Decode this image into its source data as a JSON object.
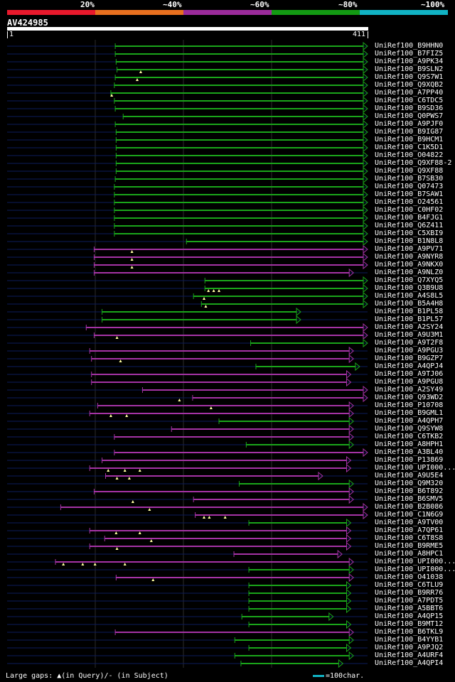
{
  "legend": [
    {
      "label": "20%",
      "color": "#e8192c"
    },
    {
      "label": "~40%",
      "color": "#e8701f"
    },
    {
      "label": "~60%",
      "color": "#9b2b9b"
    },
    {
      "label": "~80%",
      "color": "#139a13"
    },
    {
      "label": "~100%",
      "color": "#11b3c4"
    }
  ],
  "query": {
    "id": "AV424985",
    "start_label": "1",
    "end_label": "411",
    "length": 411
  },
  "colors": {
    "green": "#1aa51a",
    "purple": "#a533a5",
    "navy": "#0c1b5c",
    "grid": "#2b2b2b"
  },
  "hits": [
    {
      "name": "UniRef100_B9HHN0",
      "start": 124,
      "end": 411,
      "color": "green",
      "gaps": []
    },
    {
      "name": "UniRef100_B7FIZ5",
      "start": 124,
      "end": 411,
      "color": "green",
      "gaps": []
    },
    {
      "name": "UniRef100_A9PK34",
      "start": 125,
      "end": 411,
      "color": "green",
      "gaps": []
    },
    {
      "name": "UniRef100_B9SLN2",
      "start": 126,
      "end": 411,
      "color": "green",
      "gaps": [
        153
      ]
    },
    {
      "name": "UniRef100_Q9S7W1",
      "start": 124,
      "end": 411,
      "color": "green",
      "gaps": [
        149
      ]
    },
    {
      "name": "UniRef100_Q9XQB2",
      "start": 123,
      "end": 411,
      "color": "green",
      "gaps": []
    },
    {
      "name": "UniRef100_A7PP40",
      "start": 119,
      "end": 411,
      "color": "green",
      "gaps": [
        120
      ]
    },
    {
      "name": "UniRef100_C6TDC5",
      "start": 123,
      "end": 411,
      "color": "green",
      "gaps": []
    },
    {
      "name": "UniRef100_B9SD36",
      "start": 124,
      "end": 411,
      "color": "green",
      "gaps": []
    },
    {
      "name": "UniRef100_Q0PWS7",
      "start": 133,
      "end": 411,
      "color": "green",
      "gaps": []
    },
    {
      "name": "UniRef100_A9PJF0",
      "start": 124,
      "end": 411,
      "color": "green",
      "gaps": []
    },
    {
      "name": "UniRef100_B9IG87",
      "start": 125,
      "end": 411,
      "color": "green",
      "gaps": []
    },
    {
      "name": "UniRef100_B9HCM1",
      "start": 125,
      "end": 411,
      "color": "green",
      "gaps": []
    },
    {
      "name": "UniRef100_C1K5D1",
      "start": 125,
      "end": 411,
      "color": "green",
      "gaps": []
    },
    {
      "name": "UniRef100_O04822",
      "start": 125,
      "end": 411,
      "color": "green",
      "gaps": []
    },
    {
      "name": "UniRef100_Q9XF88-2",
      "start": 125,
      "end": 411,
      "color": "green",
      "gaps": []
    },
    {
      "name": "UniRef100_Q9XF88",
      "start": 125,
      "end": 411,
      "color": "green",
      "gaps": []
    },
    {
      "name": "UniRef100_B7SB30",
      "start": 124,
      "end": 411,
      "color": "green",
      "gaps": []
    },
    {
      "name": "UniRef100_Q07473",
      "start": 123,
      "end": 411,
      "color": "green",
      "gaps": []
    },
    {
      "name": "UniRef100_B7SAW1",
      "start": 123,
      "end": 411,
      "color": "green",
      "gaps": []
    },
    {
      "name": "UniRef100_O24561",
      "start": 123,
      "end": 411,
      "color": "green",
      "gaps": []
    },
    {
      "name": "UniRef100_C0HF02",
      "start": 123,
      "end": 411,
      "color": "green",
      "gaps": []
    },
    {
      "name": "UniRef100_B4FJG1",
      "start": 123,
      "end": 411,
      "color": "green",
      "gaps": []
    },
    {
      "name": "UniRef100_Q6Z411",
      "start": 123,
      "end": 411,
      "color": "green",
      "gaps": []
    },
    {
      "name": "UniRef100_C5XBI9",
      "start": 123,
      "end": 411,
      "color": "green",
      "gaps": []
    },
    {
      "name": "UniRef100_B1N8L8",
      "start": 205,
      "end": 411,
      "color": "green",
      "gaps": []
    },
    {
      "name": "UniRef100_A9PV71",
      "start": 100,
      "end": 411,
      "color": "purple",
      "gaps": [
        143
      ]
    },
    {
      "name": "UniRef100_A9NYR8",
      "start": 100,
      "end": 411,
      "color": "purple",
      "gaps": [
        143
      ]
    },
    {
      "name": "UniRef100_A9NKX0",
      "start": 100,
      "end": 411,
      "color": "purple",
      "gaps": [
        143
      ]
    },
    {
      "name": "UniRef100_A9NLZ0",
      "start": 100,
      "end": 395,
      "color": "purple",
      "gaps": []
    },
    {
      "name": "UniRef100_Q7XYQ5",
      "start": 226,
      "end": 411,
      "color": "green",
      "gaps": []
    },
    {
      "name": "UniRef100_Q3B9U8",
      "start": 226,
      "end": 411,
      "color": "green",
      "gaps": [
        230,
        236,
        242
      ]
    },
    {
      "name": "UniRef100_A4S8L5",
      "start": 213,
      "end": 411,
      "color": "green",
      "gaps": [
        225
      ]
    },
    {
      "name": "UniRef100_B5A4H8",
      "start": 222,
      "end": 411,
      "color": "green",
      "gaps": [
        227
      ]
    },
    {
      "name": "UniRef100_B1PL58",
      "start": 109,
      "end": 335,
      "color": "green",
      "gaps": []
    },
    {
      "name": "UniRef100_B1PL57",
      "start": 109,
      "end": 335,
      "color": "green",
      "gaps": []
    },
    {
      "name": "UniRef100_A2SY24",
      "start": 91,
      "end": 411,
      "color": "purple",
      "gaps": []
    },
    {
      "name": "UniRef100_A9U3M1",
      "start": 100,
      "end": 411,
      "color": "purple",
      "gaps": [
        126
      ]
    },
    {
      "name": "UniRef100_A9T2F8",
      "start": 278,
      "end": 411,
      "color": "green",
      "gaps": []
    },
    {
      "name": "UniRef100_A9PGU3",
      "start": 95,
      "end": 395,
      "color": "purple",
      "gaps": []
    },
    {
      "name": "UniRef100_B9GZP7",
      "start": 97,
      "end": 395,
      "color": "purple",
      "gaps": [
        130
      ]
    },
    {
      "name": "UniRef100_A4QPJ4",
      "start": 284,
      "end": 402,
      "color": "green",
      "gaps": []
    },
    {
      "name": "UniRef100_A9TJ06",
      "start": 97,
      "end": 392,
      "color": "purple",
      "gaps": []
    },
    {
      "name": "UniRef100_A9PGU8",
      "start": 97,
      "end": 392,
      "color": "purple",
      "gaps": []
    },
    {
      "name": "UniRef100_A2SY49",
      "start": 155,
      "end": 411,
      "color": "purple",
      "gaps": []
    },
    {
      "name": "UniRef100_Q93WD2",
      "start": 212,
      "end": 411,
      "color": "purple",
      "gaps": [
        197
      ]
    },
    {
      "name": "UniRef100_P10708",
      "start": 104,
      "end": 395,
      "color": "purple",
      "gaps": [
        233
      ]
    },
    {
      "name": "UniRef100_B9GML1",
      "start": 95,
      "end": 395,
      "color": "purple",
      "gaps": [
        119,
        137
      ]
    },
    {
      "name": "UniRef100_A4QPH7",
      "start": 242,
      "end": 395,
      "color": "green",
      "gaps": []
    },
    {
      "name": "UniRef100_Q9SYW8",
      "start": 188,
      "end": 395,
      "color": "purple",
      "gaps": []
    },
    {
      "name": "UniRef100_C6TKB2",
      "start": 123,
      "end": 395,
      "color": "purple",
      "gaps": []
    },
    {
      "name": "UniRef100_A8HPH1",
      "start": 273,
      "end": 395,
      "color": "green",
      "gaps": []
    },
    {
      "name": "UniRef100_A3BL40",
      "start": 123,
      "end": 411,
      "color": "purple",
      "gaps": []
    },
    {
      "name": "UniRef100_P13869",
      "start": 109,
      "end": 392,
      "color": "purple",
      "gaps": []
    },
    {
      "name": "UniRef100_UPI000...",
      "start": 95,
      "end": 392,
      "color": "purple",
      "gaps": [
        116,
        135,
        152
      ]
    },
    {
      "name": "UniRef100_A9U5E4",
      "start": 113,
      "end": 360,
      "color": "purple",
      "gaps": [
        126,
        140
      ]
    },
    {
      "name": "UniRef100_Q9M320",
      "start": 265,
      "end": 395,
      "color": "green",
      "gaps": []
    },
    {
      "name": "UniRef100_B6T892",
      "start": 100,
      "end": 395,
      "color": "purple",
      "gaps": []
    },
    {
      "name": "UniRef100_B6SMV5",
      "start": 213,
      "end": 395,
      "color": "purple",
      "gaps": [
        144
      ]
    },
    {
      "name": "UniRef100_B2B086",
      "start": 62,
      "end": 411,
      "color": "purple",
      "gaps": [
        163
      ]
    },
    {
      "name": "UniRef100_C1N6G9",
      "start": 215,
      "end": 411,
      "color": "purple",
      "gaps": [
        225,
        231,
        249
      ]
    },
    {
      "name": "UniRef100_A9TV00",
      "start": 276,
      "end": 392,
      "color": "green",
      "gaps": []
    },
    {
      "name": "UniRef100_A7QP61",
      "start": 95,
      "end": 392,
      "color": "purple",
      "gaps": [
        125,
        152
      ]
    },
    {
      "name": "UniRef100_C6T8S8",
      "start": 112,
      "end": 392,
      "color": "purple",
      "gaps": [
        165
      ]
    },
    {
      "name": "UniRef100_B9RME5",
      "start": 95,
      "end": 392,
      "color": "purple",
      "gaps": [
        126
      ]
    },
    {
      "name": "UniRef100_A8HPC1",
      "start": 259,
      "end": 382,
      "color": "purple",
      "gaps": []
    },
    {
      "name": "UniRef100_UPI000...",
      "start": 56,
      "end": 395,
      "color": "purple",
      "gaps": [
        65,
        87,
        101,
        135
      ]
    },
    {
      "name": "UniRef100_UPI000...",
      "start": 276,
      "end": 395,
      "color": "green",
      "gaps": []
    },
    {
      "name": "UniRef100_O41038",
      "start": 125,
      "end": 395,
      "color": "purple",
      "gaps": [
        167
      ]
    },
    {
      "name": "UniRef100_C6TLU9",
      "start": 276,
      "end": 392,
      "color": "green",
      "gaps": []
    },
    {
      "name": "UniRef100_B9RR76",
      "start": 276,
      "end": 392,
      "color": "green",
      "gaps": []
    },
    {
      "name": "UniRef100_A7PDT5",
      "start": 276,
      "end": 392,
      "color": "green",
      "gaps": []
    },
    {
      "name": "UniRef100_A5BBT6",
      "start": 276,
      "end": 392,
      "color": "green",
      "gaps": []
    },
    {
      "name": "UniRef100_A4QP15",
      "start": 268,
      "end": 372,
      "color": "green",
      "gaps": []
    },
    {
      "name": "UniRef100_B9MT12",
      "start": 276,
      "end": 392,
      "color": "green",
      "gaps": []
    },
    {
      "name": "UniRef100_B6TKL9",
      "start": 124,
      "end": 395,
      "color": "purple",
      "gaps": []
    },
    {
      "name": "UniRef100_B4YYB1",
      "start": 260,
      "end": 395,
      "color": "green",
      "gaps": []
    },
    {
      "name": "UniRef100_A9PJQ2",
      "start": 276,
      "end": 392,
      "color": "green",
      "gaps": []
    },
    {
      "name": "UniRef100_A4URF4",
      "start": 260,
      "end": 395,
      "color": "green",
      "gaps": []
    },
    {
      "name": "UniRef100_A4QPI4",
      "start": 267,
      "end": 383,
      "color": "green",
      "gaps": []
    }
  ],
  "footer": {
    "gaps_text": "Large gaps: ▲(in Query)/- (in Subject)",
    "scale_text": "=100char."
  }
}
